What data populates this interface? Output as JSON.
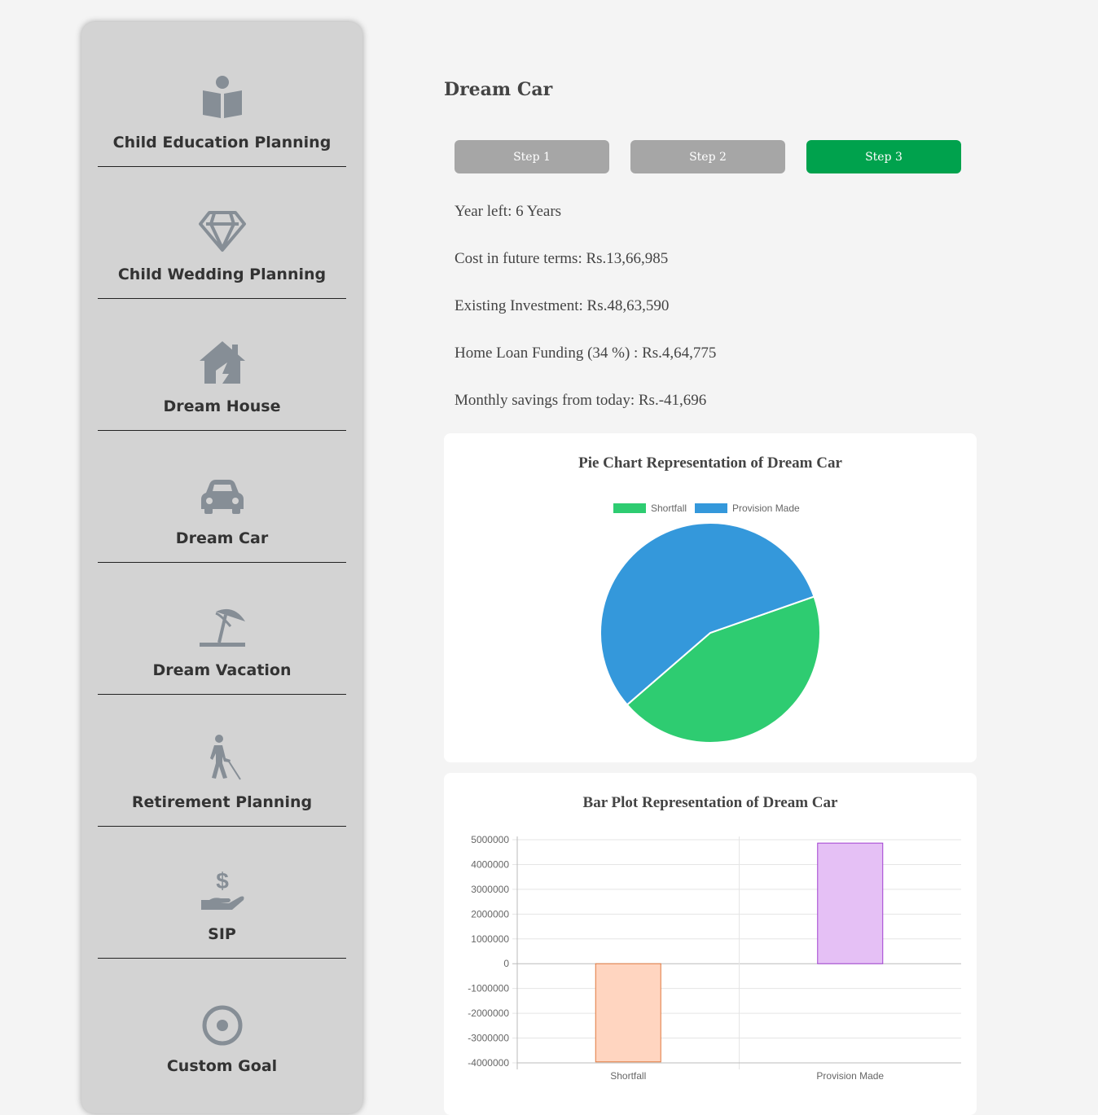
{
  "sidebar": {
    "items": [
      {
        "label": "Child Education Planning",
        "icon": "book-reader-icon"
      },
      {
        "label": "Child Wedding Planning",
        "icon": "diamond-icon"
      },
      {
        "label": "Dream House",
        "icon": "house-icon"
      },
      {
        "label": "Dream Car",
        "icon": "car-icon"
      },
      {
        "label": "Dream Vacation",
        "icon": "umbrella-beach-icon"
      },
      {
        "label": "Retirement Planning",
        "icon": "blind-walker-icon"
      },
      {
        "label": "SIP",
        "icon": "hand-dollar-icon"
      },
      {
        "label": "Custom Goal",
        "icon": "bullseye-icon"
      }
    ],
    "icon_color": "#868e96"
  },
  "main": {
    "title": "Dream Car",
    "steps": [
      {
        "label": "Step 1",
        "active": false
      },
      {
        "label": "Step 2",
        "active": false
      },
      {
        "label": "Step 3",
        "active": true
      }
    ],
    "info": {
      "years_left": "Year left: 6 Years",
      "future_cost": "Cost in future terms: Rs.13,66,985",
      "existing_investment": "Existing Investment: Rs.48,63,590",
      "home_loan": "Home Loan Funding (34 %) : Rs.4,64,775",
      "monthly_savings": "Monthly savings from today: Rs.-41,696"
    }
  },
  "chart_data": [
    {
      "type": "pie",
      "title": "Pie Chart Representation of Dream Car",
      "legend_position": "top",
      "categories": [
        "Shortfall",
        "Provision Made"
      ],
      "values": [
        44,
        56
      ],
      "colors": [
        "#2ecc71",
        "#3498db"
      ]
    },
    {
      "type": "bar",
      "title": "Bar Plot Representation of Dream Car",
      "categories": [
        "Shortfall",
        "Provision Made"
      ],
      "values": [
        -3960000,
        4863590
      ],
      "fill_colors": [
        "#ffd5c0",
        "#e5c0f5"
      ],
      "border_colors": [
        "#e07a40",
        "#a040d0"
      ],
      "ylim": [
        -4000000,
        5000000
      ],
      "yticks": [
        "5000000",
        "4000000",
        "3000000",
        "2000000",
        "1000000",
        "0",
        "-1000000",
        "-2000000",
        "-3000000",
        "-4000000"
      ],
      "grid": true
    }
  ]
}
